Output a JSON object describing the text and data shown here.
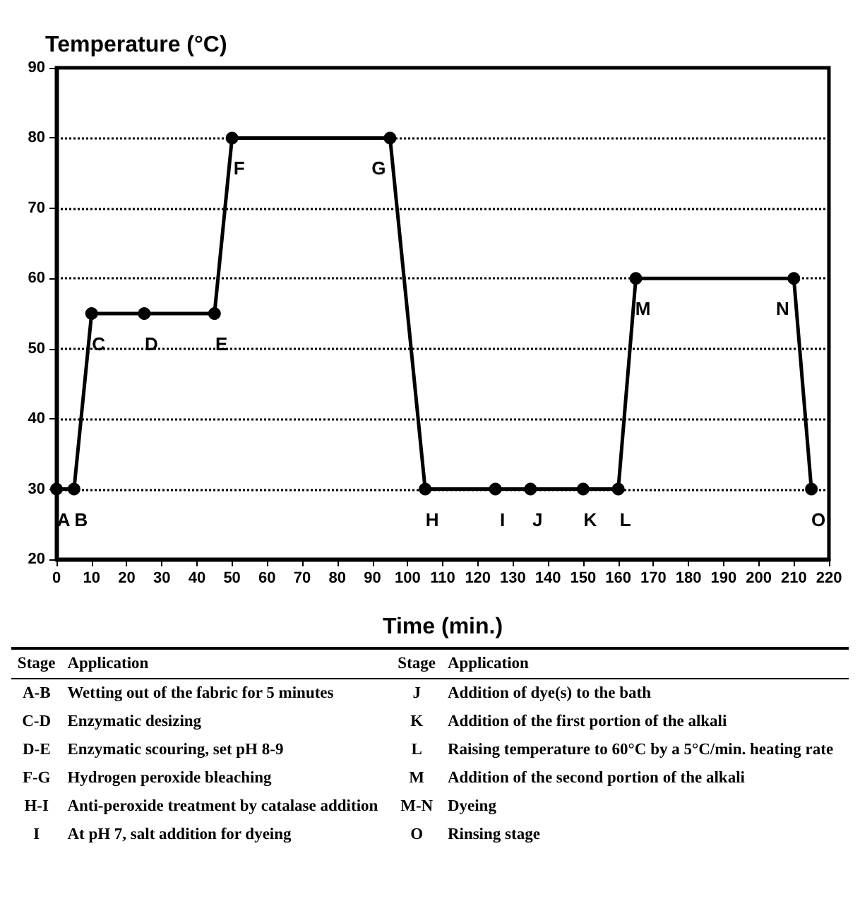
{
  "chart_data": [
    {
      "type": "line",
      "xlabel": "Time (min.)",
      "ylabel": "Temperature (°C)",
      "x": [
        0,
        5,
        10,
        25,
        45,
        50,
        95,
        105,
        125,
        135,
        150,
        160,
        165,
        210,
        215
      ],
      "series": [
        {
          "color": "#000000",
          "values": [
            30,
            30,
            55,
            55,
            55,
            80,
            80,
            30,
            30,
            30,
            30,
            30,
            60,
            60,
            30
          ]
        }
      ],
      "xlim": [
        0,
        220
      ],
      "xticks": [
        0,
        10,
        20,
        30,
        40,
        50,
        60,
        70,
        80,
        90,
        100,
        110,
        120,
        130,
        140,
        150,
        160,
        170,
        180,
        190,
        200,
        210,
        220
      ],
      "ylim": [
        20,
        90
      ],
      "yticks": [
        20,
        30,
        40,
        50,
        60,
        70,
        80,
        90
      ],
      "grid": "y",
      "marker": "circle",
      "line_style": "solid",
      "annotations": [
        {
          "text": "A",
          "x": 0,
          "y": 30
        },
        {
          "text": "B",
          "x": 5,
          "y": 30
        },
        {
          "text": "C",
          "x": 10,
          "y": 55
        },
        {
          "text": "D",
          "x": 25,
          "y": 55
        },
        {
          "text": "E",
          "x": 45,
          "y": 55
        },
        {
          "text": "F",
          "x": 50,
          "y": 80
        },
        {
          "text": "G",
          "x": 95,
          "y": 80
        },
        {
          "text": "H",
          "x": 105,
          "y": 30
        },
        {
          "text": "I",
          "x": 125,
          "y": 30
        },
        {
          "text": "J",
          "x": 135,
          "y": 30
        },
        {
          "text": "K",
          "x": 150,
          "y": 30
        },
        {
          "text": "L",
          "x": 160,
          "y": 30
        },
        {
          "text": "M",
          "x": 165,
          "y": 60
        },
        {
          "text": "N",
          "x": 210,
          "y": 60
        },
        {
          "text": "O",
          "x": 215,
          "y": 30
        }
      ]
    },
    {
      "type": "other",
      "annotations": [
        "Stage",
        "Application",
        "Stage",
        "Application",
        "A-B",
        "Wetting out of the fabric for 5 minutes",
        "J",
        "Addition of dye(s) to the bath",
        "C-D",
        "Enzymatic desizing",
        "K",
        "Addition of the first portion of the alkali",
        "D-E",
        "Enzymatic scouring, set pH 8-9",
        "L",
        "Raising temperature to 60°C by a 5°C/min. heating rate",
        "F-G",
        "Hydrogen peroxide bleaching",
        "M",
        "Addition of the second portion of the alkali",
        "H-I",
        "Anti-peroxide treatment by catalase addition",
        "M-N",
        "Dyeing",
        "I",
        "At pH 7, salt addition for dyeing",
        "O",
        "Rinsing stage"
      ]
    }
  ]
}
